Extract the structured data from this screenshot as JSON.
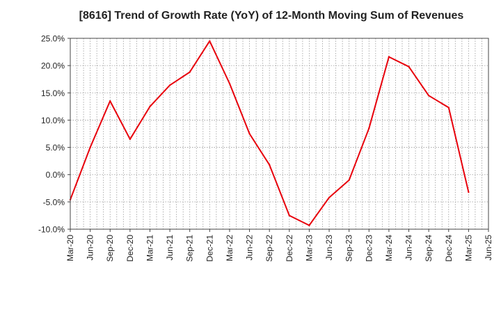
{
  "chart_data": {
    "type": "line",
    "title": "[8616]  Trend of Growth Rate (YoY) of 12-Month Moving Sum of Revenues",
    "xlabel": "",
    "ylabel": "",
    "ylim": [
      -10,
      25
    ],
    "y_ticks": [
      "25.0%",
      "20.0%",
      "15.0%",
      "10.0%",
      "5.0%",
      "0.0%",
      "-5.0%",
      "-10.0%"
    ],
    "y_tick_values": [
      25,
      20,
      15,
      10,
      5,
      0,
      -5,
      -10
    ],
    "x_tick_labels": [
      "Mar-20",
      "Jun-20",
      "Sep-20",
      "Dec-20",
      "Mar-21",
      "Jun-21",
      "Sep-21",
      "Dec-21",
      "Mar-22",
      "Jun-22",
      "Sep-22",
      "Dec-22",
      "Mar-23",
      "Jun-23",
      "Sep-23",
      "Dec-23",
      "Mar-24",
      "Jun-24",
      "Sep-24",
      "Dec-24",
      "Mar-25",
      "Jun-25"
    ],
    "grid": true,
    "line_color": "#e8000b",
    "series": [
      {
        "values": [
          -4.6,
          5.0,
          13.5,
          6.5,
          12.5,
          16.4,
          18.8,
          24.5,
          16.7,
          7.5,
          1.8,
          -7.5,
          -9.3,
          -4.2,
          -1.0,
          8.5,
          21.6,
          19.8,
          14.5,
          12.3,
          -3.2
        ]
      }
    ]
  }
}
